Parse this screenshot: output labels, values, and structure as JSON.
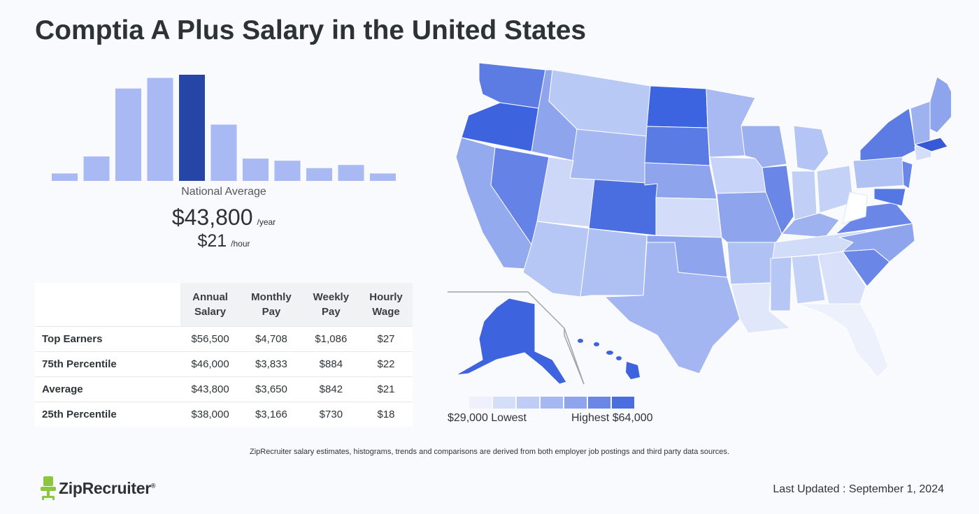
{
  "title": "Comptia A Plus Salary in the United States",
  "national_average_label": "National Average",
  "salary": {
    "annual": "$43,800",
    "annual_unit": "/year",
    "hourly": "$21",
    "hourly_unit": "/hour"
  },
  "table": {
    "headers": [
      {
        "line1": "Annual",
        "line2": "Salary"
      },
      {
        "line1": "Monthly",
        "line2": "Pay"
      },
      {
        "line1": "Weekly",
        "line2": "Pay"
      },
      {
        "line1": "Hourly",
        "line2": "Wage"
      }
    ],
    "rows": [
      {
        "label": "Top Earners",
        "values": [
          "$56,500",
          "$4,708",
          "$1,086",
          "$27"
        ]
      },
      {
        "label": "75th Percentile",
        "values": [
          "$46,000",
          "$3,833",
          "$884",
          "$22"
        ]
      },
      {
        "label": "Average",
        "values": [
          "$43,800",
          "$3,650",
          "$842",
          "$21"
        ]
      },
      {
        "label": "25th Percentile",
        "values": [
          "$38,000",
          "$3,166",
          "$730",
          "$18"
        ]
      }
    ]
  },
  "chart_data": [
    {
      "type": "bar",
      "values": [
        7,
        23,
        87,
        97,
        100,
        53,
        21,
        19,
        12,
        15,
        7
      ],
      "highlight_index": 4,
      "colors": {
        "bar": "#a9b9f3",
        "highlight": "#2546a6"
      }
    },
    {
      "type": "heatmap",
      "legend_low": "$29,000 Lowest",
      "legend_high": "Highest $64,000",
      "legend_colors": [
        "#eef1fc",
        "#d5def9",
        "#bfcdf6",
        "#a6b8f1",
        "#8ea4ed",
        "#6a86e6",
        "#4a6de0"
      ]
    }
  ],
  "disclaimer": "ZipRecruiter salary estimates, histograms, trends and comparisons are derived from both employer job postings and third party data sources.",
  "brand": {
    "name": "ZipRecruiter",
    "reg": "®",
    "accent": "#8bc63f"
  },
  "last_updated": "Last Updated : September 1, 2024"
}
